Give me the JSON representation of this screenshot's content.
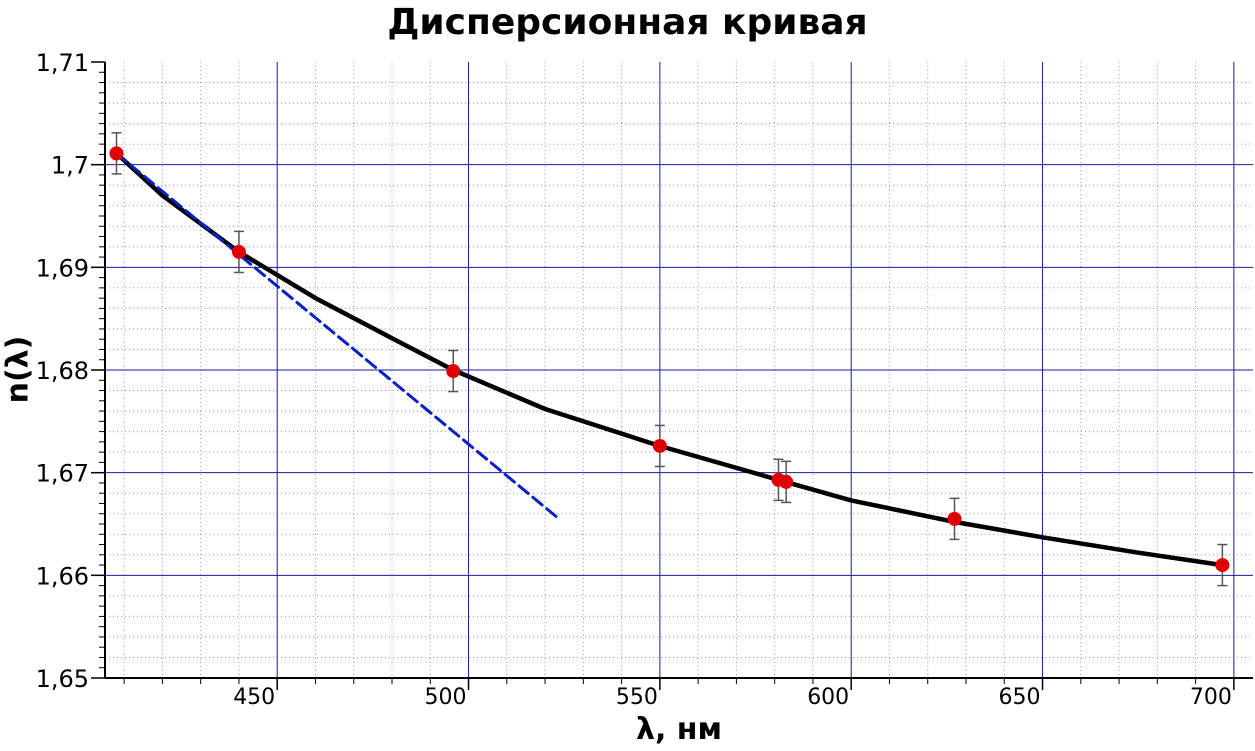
{
  "chart_data": {
    "type": "scatter",
    "title": "Дисперсионная кривая",
    "xlabel": "λ, нм",
    "ylabel": "n(λ)",
    "xlim": [
      405,
      705
    ],
    "ylim": [
      1.65,
      1.71
    ],
    "x_ticks": [
      450,
      500,
      550,
      600,
      650,
      700
    ],
    "x_tick_labels": [
      "450",
      "500",
      "550",
      "600",
      "650",
      "700"
    ],
    "y_ticks": [
      1.65,
      1.66,
      1.67,
      1.68,
      1.69,
      1.7,
      1.71
    ],
    "y_tick_labels": [
      "1,65",
      "1,66",
      "1,67",
      "1,68",
      "1,69",
      "1,7",
      "1,71"
    ],
    "grid": true,
    "series": [
      {
        "kind": "points_with_error_bars",
        "color": "#e00000",
        "points": [
          {
            "x": 408,
            "y": 1.7011,
            "err": 0.002
          },
          {
            "x": 440,
            "y": 1.6915,
            "err": 0.002
          },
          {
            "x": 496,
            "y": 1.6799,
            "err": 0.002
          },
          {
            "x": 550,
            "y": 1.6726,
            "err": 0.002
          },
          {
            "x": 581,
            "y": 1.6693,
            "err": 0.002
          },
          {
            "x": 583,
            "y": 1.6691,
            "err": 0.002
          },
          {
            "x": 627,
            "y": 1.6655,
            "err": 0.002
          },
          {
            "x": 697,
            "y": 1.661,
            "err": 0.002
          }
        ]
      },
      {
        "kind": "fit_curve",
        "color": "#000000",
        "style": "solid",
        "x": [
          408,
          420,
          440,
          460,
          480,
          496,
          520,
          550,
          581,
          600,
          627,
          650,
          675,
          697
        ],
        "y": [
          1.7011,
          1.697,
          1.6915,
          1.687,
          1.6831,
          1.68,
          1.6762,
          1.6726,
          1.6693,
          1.6673,
          1.6652,
          1.6637,
          1.6622,
          1.661
        ]
      },
      {
        "kind": "tangent_line",
        "color": "#0a1fc8",
        "style": "dashed",
        "x": [
          408,
          523
        ],
        "y": [
          1.7011,
          1.6657
        ]
      }
    ]
  }
}
